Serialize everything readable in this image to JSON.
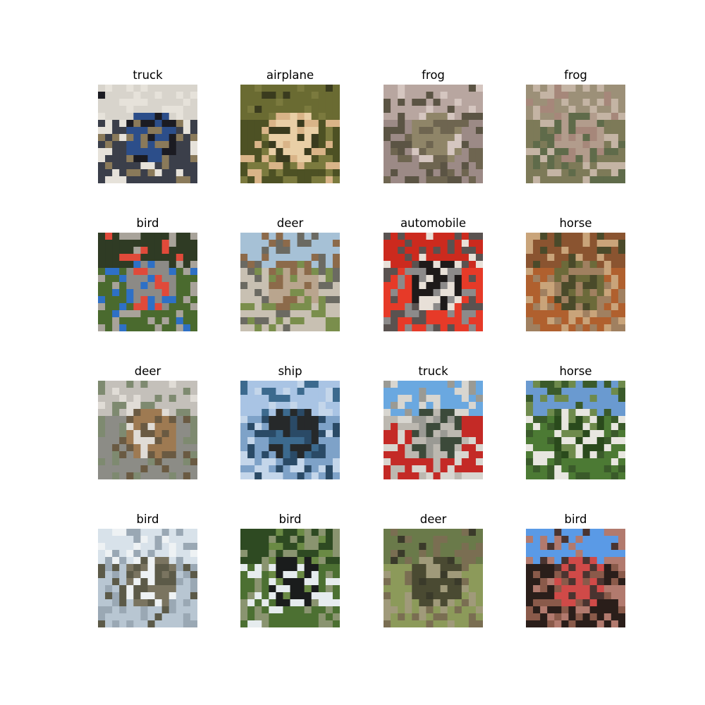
{
  "figure": {
    "images": [
      {
        "label": "truck",
        "subject": "truck",
        "colors": [
          "#d8d4cc",
          "#3b3f4a",
          "#2c4e8a",
          "#8a7a5a",
          "#1b1b22",
          "#e6e2da"
        ]
      },
      {
        "label": "airplane",
        "subject": "airplane",
        "colors": [
          "#6a6b32",
          "#4d5124",
          "#e9cfa6",
          "#d9b488",
          "#3a3b1e",
          "#7b7a3e"
        ]
      },
      {
        "label": "frog",
        "subject": "frog",
        "colors": [
          "#b8a6a0",
          "#9c8a86",
          "#8f8568",
          "#6e6550",
          "#d5c6c0",
          "#5b5444"
        ]
      },
      {
        "label": "frog",
        "subject": "frog",
        "colors": [
          "#9c9078",
          "#7d7a58",
          "#b29c8c",
          "#5f6b4a",
          "#a6877a",
          "#c4b4a4"
        ]
      },
      {
        "label": "bird",
        "subject": "bird",
        "colors": [
          "#2f3b24",
          "#4a6a2e",
          "#8c8a86",
          "#2e70c6",
          "#e04a3a",
          "#a8a39a"
        ]
      },
      {
        "label": "deer",
        "subject": "deer",
        "colors": [
          "#a6c1d6",
          "#c8c0b2",
          "#b9a58e",
          "#7a8e4c",
          "#8c6a4a",
          "#6b6a62"
        ]
      },
      {
        "label": "automobile",
        "subject": "automobile",
        "colors": [
          "#cc2a1e",
          "#e63a28",
          "#1e1a1a",
          "#8c8a8a",
          "#e8e0d8",
          "#5a5250"
        ]
      },
      {
        "label": "horse",
        "subject": "horse",
        "colors": [
          "#8a5430",
          "#b0602e",
          "#6c6a3a",
          "#a08060",
          "#4a4a2a",
          "#c9a47a"
        ]
      },
      {
        "label": "deer",
        "subject": "deer",
        "colors": [
          "#c4c0ba",
          "#8c8c86",
          "#9e7a52",
          "#6a5a42",
          "#e0dcd6",
          "#7e8a70"
        ]
      },
      {
        "label": "ship",
        "subject": "ship",
        "colors": [
          "#a9c4e4",
          "#7ea2c8",
          "#26292a",
          "#2a4a66",
          "#3c6a8e",
          "#c4d6ea"
        ]
      },
      {
        "label": "truck",
        "subject": "truck",
        "colors": [
          "#6aa8e0",
          "#c42a26",
          "#3c4a3a",
          "#bcb8b0",
          "#9a9a94",
          "#d8d6d0"
        ]
      },
      {
        "label": "horse",
        "subject": "horse",
        "colors": [
          "#6a9ad0",
          "#4c7a34",
          "#2a4a1c",
          "#e8e6e0",
          "#6e8a4c",
          "#3a5a2a"
        ]
      },
      {
        "label": "bird",
        "subject": "bird",
        "colors": [
          "#d8e2ea",
          "#b8c6d2",
          "#7a7460",
          "#5c5a48",
          "#eef2f4",
          "#9aa8b4"
        ]
      },
      {
        "label": "bird",
        "subject": "bird",
        "colors": [
          "#2e4a22",
          "#4c7032",
          "#1a1c1c",
          "#e6ecee",
          "#6a8a44",
          "#8a9470"
        ]
      },
      {
        "label": "deer",
        "subject": "deer",
        "colors": [
          "#6a7a4a",
          "#8c9a5a",
          "#4a4a32",
          "#a09a7a",
          "#3a3a2a",
          "#7a6e52"
        ]
      },
      {
        "label": "bird",
        "subject": "bird",
        "colors": [
          "#5a9ae6",
          "#2a1e1a",
          "#d04a48",
          "#8a5a4a",
          "#4a3430",
          "#b27a6e"
        ]
      }
    ]
  }
}
